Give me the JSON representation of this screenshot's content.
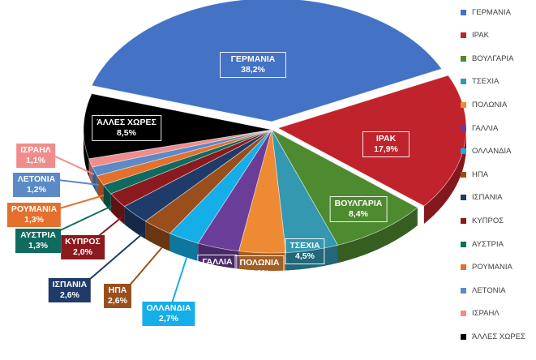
{
  "chart_data": {
    "type": "pie",
    "title": "",
    "legend_position": "right",
    "slices": [
      {
        "label": "ΓΕΡΜΑΝΙΑ",
        "value": 38.2,
        "value_label": "38,2%",
        "color": "#4472C4"
      },
      {
        "label": "ΙΡΑΚ",
        "value": 17.9,
        "value_label": "17,9%",
        "color": "#C0232B"
      },
      {
        "label": "ΒΟΥΛΓΑΡΙΑ",
        "value": 8.4,
        "value_label": "8,4%",
        "color": "#4E8A2F"
      },
      {
        "label": "ΤΣΕΧΙΑ",
        "value": 4.5,
        "value_label": "4,5%",
        "color": "#3398B0"
      },
      {
        "label": "ΠΟΛΩΝΙΑ",
        "value": 4.0,
        "value_label": "4,0%",
        "color": "#EE8A33"
      },
      {
        "label": "ΓΑΛΛΙΑ",
        "value": 3.6,
        "value_label": "3,6%",
        "color": "#6A3D98"
      },
      {
        "label": "ΟΛΛΑΝΔΙΑ",
        "value": 2.7,
        "value_label": "2,7%",
        "color": "#16AEE8"
      },
      {
        "label": "ΗΠΑ",
        "value": 2.6,
        "value_label": "2,6%",
        "color": "#9A4E1C"
      },
      {
        "label": "ΙΣΠΑΝΙΑ",
        "value": 2.6,
        "value_label": "2,6%",
        "color": "#1F3B6A"
      },
      {
        "label": "ΚΥΠΡΟΣ",
        "value": 2.0,
        "value_label": "2,0%",
        "color": "#8B1A1E"
      },
      {
        "label": "ΑΥΣΤΡΙΑ",
        "value": 1.3,
        "value_label": "1,3%",
        "color": "#0F6B5F"
      },
      {
        "label": "ΡΟΥΜΑΝΙΑ",
        "value": 1.3,
        "value_label": "1,3%",
        "color": "#E4702E"
      },
      {
        "label": "ΛΕΤΟΝΙΑ",
        "value": 1.2,
        "value_label": "1,2%",
        "color": "#5C8AC6"
      },
      {
        "label": "ΙΣΡΑΗΛ",
        "value": 1.1,
        "value_label": "1,1%",
        "color": "#F08C8C"
      },
      {
        "label": "ΆΛΛΕΣ ΧΩΡΕΣ",
        "value": 8.5,
        "value_label": "8,5%",
        "color": "#000000"
      }
    ]
  }
}
